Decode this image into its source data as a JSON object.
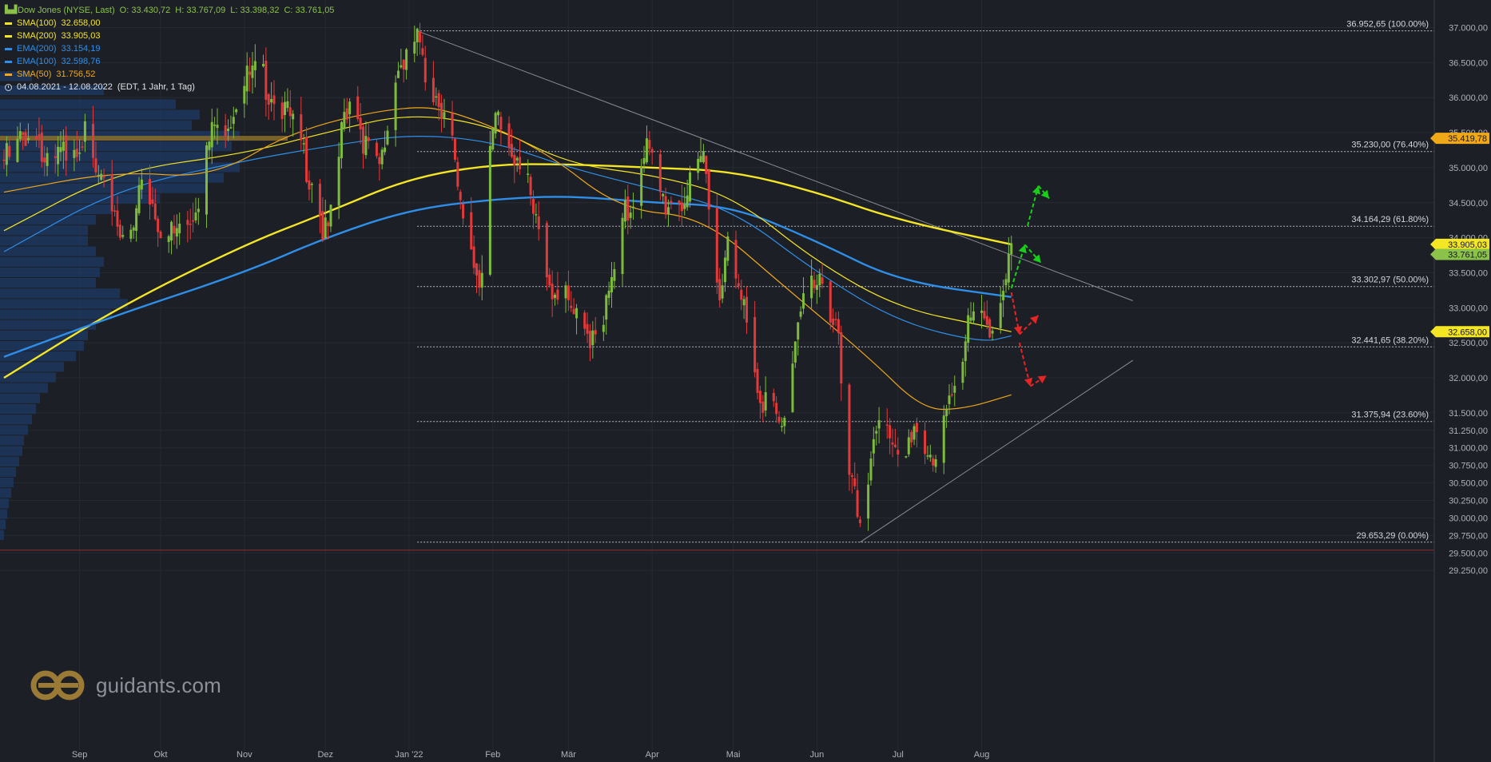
{
  "header": {
    "title": "Dow Jones (NYSE, Last)",
    "ohlc": [
      "O: 33.430,72",
      "H: 33.767,09",
      "L: 33.398,32",
      "C: 33.761,05"
    ],
    "indicators": [
      {
        "label": "SMA(100)",
        "value": "32.658,00",
        "color": "#f5e625"
      },
      {
        "label": "SMA(200)",
        "value": "33.905,03",
        "color": "#f5e625"
      },
      {
        "label": "EMA(200)",
        "value": "33.154,19",
        "color": "#2f8fe8"
      },
      {
        "label": "EMA(100)",
        "value": "32.598,76",
        "color": "#2f8fe8"
      },
      {
        "label": "SMA(50)",
        "value": "31.756,52",
        "color": "#f0a818"
      }
    ],
    "range": "04.08.2021 - 12.08.2022",
    "range_detail": "(EDT, 1 Jahr, 1 Tag)"
  },
  "branding": {
    "logo_text": "guidants.com"
  },
  "chart_data": {
    "type": "candlestick",
    "ylim": [
      29250,
      37250
    ],
    "y_ticks": [
      {
        "v": 29250,
        "t": "29.250,00"
      },
      {
        "v": 29500,
        "t": "29.500,00"
      },
      {
        "v": 29750,
        "t": "29.750,00"
      },
      {
        "v": 30000,
        "t": "30.000,00"
      },
      {
        "v": 30250,
        "t": "30.250,00"
      },
      {
        "v": 30500,
        "t": "30.500,00"
      },
      {
        "v": 30750,
        "t": "30.750,00"
      },
      {
        "v": 31000,
        "t": "31.000,00"
      },
      {
        "v": 31250,
        "t": "31.250,00"
      },
      {
        "v": 31500,
        "t": "31.500,00"
      },
      {
        "v": 32000,
        "t": "32.000,00"
      },
      {
        "v": 32500,
        "t": "32.500,00"
      },
      {
        "v": 33000,
        "t": "33.000,00"
      },
      {
        "v": 33500,
        "t": "33.500,00"
      },
      {
        "v": 34000,
        "t": "34.000,00"
      },
      {
        "v": 34500,
        "t": "34.500,00"
      },
      {
        "v": 35000,
        "t": "35.000,00"
      },
      {
        "v": 35500,
        "t": "35.500,00"
      },
      {
        "v": 36000,
        "t": "36.000,00"
      },
      {
        "v": 36500,
        "t": "36.500,00"
      },
      {
        "v": 37000,
        "t": "37.000,00"
      }
    ],
    "x_ticks": [
      {
        "date": "2021-09-01",
        "t": "Sep"
      },
      {
        "date": "2021-10-01",
        "t": "Okt"
      },
      {
        "date": "2021-11-01",
        "t": "Nov"
      },
      {
        "date": "2021-12-01",
        "t": "Dez"
      },
      {
        "date": "2022-01-01",
        "t": "Jan '22"
      },
      {
        "date": "2022-02-01",
        "t": "Feb"
      },
      {
        "date": "2022-03-01",
        "t": "Mär"
      },
      {
        "date": "2022-04-01",
        "t": "Apr"
      },
      {
        "date": "2022-05-01",
        "t": "Mai"
      },
      {
        "date": "2022-06-01",
        "t": "Jun"
      },
      {
        "date": "2022-07-01",
        "t": "Jul"
      },
      {
        "date": "2022-08-01",
        "t": "Aug"
      }
    ],
    "price_badges": [
      {
        "v": 35419.78,
        "t": "35.419,78",
        "color": "#f0a818"
      },
      {
        "v": 33905.03,
        "t": "33.905,03",
        "color": "#f5e625"
      },
      {
        "v": 33761.05,
        "t": "33.761,05",
        "color": "#8bc34a"
      },
      {
        "v": 32658.0,
        "t": "32.658,00",
        "color": "#f5e625"
      }
    ],
    "fib_levels": [
      {
        "v": 36952.65,
        "t": "36.952,65 (100.00%)"
      },
      {
        "v": 35230.0,
        "t": "35.230,00 (76.40%)"
      },
      {
        "v": 34164.29,
        "t": "34.164,29 (61.80%)"
      },
      {
        "v": 33302.97,
        "t": "33.302,97 (50.00%)"
      },
      {
        "v": 32441.65,
        "t": "32.441,65 (38.20%)"
      },
      {
        "v": 31375.94,
        "t": "31.375,94 (23.60%)"
      },
      {
        "v": 29653.29,
        "t": "29.653,29 (0.00%)"
      }
    ],
    "fib_start_date": "2022-01-04",
    "support_level": 29540,
    "trendlines": [
      {
        "from": {
          "date": "2022-01-04",
          "v": 36952
        },
        "to": {
          "date": "2022-09-26",
          "v": 33100
        },
        "color": "#8a8d94"
      },
      {
        "from": {
          "date": "2022-06-17",
          "v": 29653
        },
        "to": {
          "date": "2022-09-26",
          "v": 32250
        },
        "color": "#8a8d94"
      }
    ],
    "scenario_arrows": [
      {
        "from": {
          "date": "2022-08-12",
          "v": 33280
        },
        "to": {
          "date": "2022-08-17",
          "v": 33900
        },
        "color": "#18d018"
      },
      {
        "from": {
          "date": "2022-08-17",
          "v": 33900
        },
        "to": {
          "date": "2022-08-23",
          "v": 33640
        },
        "color": "#18d018"
      },
      {
        "from": {
          "date": "2022-08-18",
          "v": 34170
        },
        "to": {
          "date": "2022-08-22",
          "v": 34740
        },
        "color": "#18d018"
      },
      {
        "from": {
          "date": "2022-08-22",
          "v": 34740
        },
        "to": {
          "date": "2022-08-26",
          "v": 34560
        },
        "color": "#18d018"
      },
      {
        "from": {
          "date": "2022-08-12",
          "v": 33220
        },
        "to": {
          "date": "2022-08-15",
          "v": 32620
        },
        "color": "#e82525"
      },
      {
        "from": {
          "date": "2022-08-15",
          "v": 32620
        },
        "to": {
          "date": "2022-08-22",
          "v": 32890
        },
        "color": "#e82525"
      },
      {
        "from": {
          "date": "2022-08-15",
          "v": 32500
        },
        "to": {
          "date": "2022-08-19",
          "v": 31880
        },
        "color": "#e82525"
      },
      {
        "from": {
          "date": "2022-08-19",
          "v": 31880
        },
        "to": {
          "date": "2022-08-25",
          "v": 32030
        },
        "color": "#e82525"
      }
    ],
    "anchors": [
      {
        "date": "2021-08-04",
        "v": 35100
      },
      {
        "date": "2021-08-16",
        "v": 35620
      },
      {
        "date": "2021-08-19",
        "v": 34960
      },
      {
        "date": "2021-09-02",
        "v": 35440
      },
      {
        "date": "2021-09-10",
        "v": 34620
      },
      {
        "date": "2021-09-20",
        "v": 33980
      },
      {
        "date": "2021-09-24",
        "v": 34800
      },
      {
        "date": "2021-10-04",
        "v": 34000
      },
      {
        "date": "2021-10-12",
        "v": 34360
      },
      {
        "date": "2021-10-22",
        "v": 35600
      },
      {
        "date": "2021-11-05",
        "v": 36330
      },
      {
        "date": "2021-11-12",
        "v": 36100
      },
      {
        "date": "2021-11-19",
        "v": 35620
      },
      {
        "date": "2021-11-26",
        "v": 34900
      },
      {
        "date": "2021-12-01",
        "v": 34030
      },
      {
        "date": "2021-12-10",
        "v": 35960
      },
      {
        "date": "2021-12-20",
        "v": 34950
      },
      {
        "date": "2021-12-29",
        "v": 36480
      },
      {
        "date": "2022-01-04",
        "v": 36800
      },
      {
        "date": "2022-01-07",
        "v": 36230
      },
      {
        "date": "2022-01-14",
        "v": 35920
      },
      {
        "date": "2022-01-21",
        "v": 34270
      },
      {
        "date": "2022-01-27",
        "v": 33500
      },
      {
        "date": "2022-02-02",
        "v": 35600
      },
      {
        "date": "2022-02-10",
        "v": 35240
      },
      {
        "date": "2022-02-18",
        "v": 34080
      },
      {
        "date": "2022-02-24",
        "v": 33220
      },
      {
        "date": "2022-03-08",
        "v": 32630
      },
      {
        "date": "2022-03-14",
        "v": 32940
      },
      {
        "date": "2022-03-23",
        "v": 34360
      },
      {
        "date": "2022-03-29",
        "v": 35290
      },
      {
        "date": "2022-04-06",
        "v": 34500
      },
      {
        "date": "2022-04-13",
        "v": 34560
      },
      {
        "date": "2022-04-20",
        "v": 35150
      },
      {
        "date": "2022-04-26",
        "v": 33240
      },
      {
        "date": "2022-04-28",
        "v": 33910
      },
      {
        "date": "2022-05-05",
        "v": 32990
      },
      {
        "date": "2022-05-12",
        "v": 31730
      },
      {
        "date": "2022-05-19",
        "v": 31250
      },
      {
        "date": "2022-05-27",
        "v": 33210
      },
      {
        "date": "2022-06-02",
        "v": 33250
      },
      {
        "date": "2022-06-08",
        "v": 32900
      },
      {
        "date": "2022-06-13",
        "v": 30520
      },
      {
        "date": "2022-06-17",
        "v": 29890
      },
      {
        "date": "2022-06-24",
        "v": 31500
      },
      {
        "date": "2022-06-30",
        "v": 30780
      },
      {
        "date": "2022-07-08",
        "v": 31340
      },
      {
        "date": "2022-07-14",
        "v": 30630
      },
      {
        "date": "2022-07-21",
        "v": 31900
      },
      {
        "date": "2022-07-29",
        "v": 32850
      },
      {
        "date": "2022-08-05",
        "v": 32800
      },
      {
        "date": "2022-08-10",
        "v": 33310
      },
      {
        "date": "2022-08-12",
        "v": 33761
      }
    ],
    "series": [
      {
        "name": "SMA(200)",
        "color": "#f5e625",
        "width": 2.4,
        "points": [
          {
            "date": "2021-08-04",
            "v": 32000
          },
          {
            "date": "2021-09-15",
            "v": 33000
          },
          {
            "date": "2021-11-01",
            "v": 33900
          },
          {
            "date": "2021-12-01",
            "v": 34350
          },
          {
            "date": "2022-01-01",
            "v": 34850
          },
          {
            "date": "2022-02-01",
            "v": 35050
          },
          {
            "date": "2022-03-01",
            "v": 35050
          },
          {
            "date": "2022-04-01",
            "v": 35000
          },
          {
            "date": "2022-05-01",
            "v": 34950
          },
          {
            "date": "2022-06-01",
            "v": 34650
          },
          {
            "date": "2022-07-01",
            "v": 34250
          },
          {
            "date": "2022-08-12",
            "v": 33905
          }
        ]
      },
      {
        "name": "EMA(200)",
        "color": "#2f8fe8",
        "width": 2.4,
        "points": [
          {
            "date": "2021-08-04",
            "v": 32300
          },
          {
            "date": "2021-09-15",
            "v": 32900
          },
          {
            "date": "2021-11-01",
            "v": 33500
          },
          {
            "date": "2021-12-01",
            "v": 34000
          },
          {
            "date": "2022-01-01",
            "v": 34400
          },
          {
            "date": "2022-02-01",
            "v": 34550
          },
          {
            "date": "2022-03-01",
            "v": 34600
          },
          {
            "date": "2022-04-01",
            "v": 34500
          },
          {
            "date": "2022-05-01",
            "v": 34450
          },
          {
            "date": "2022-06-01",
            "v": 33950
          },
          {
            "date": "2022-07-01",
            "v": 33380
          },
          {
            "date": "2022-08-12",
            "v": 33154
          }
        ]
      },
      {
        "name": "SMA(100)",
        "color": "#f5e625",
        "width": 1.2,
        "points": [
          {
            "date": "2021-08-04",
            "v": 34100
          },
          {
            "date": "2021-09-15",
            "v": 34950
          },
          {
            "date": "2021-11-01",
            "v": 35200
          },
          {
            "date": "2021-12-01",
            "v": 35500
          },
          {
            "date": "2022-01-01",
            "v": 35780
          },
          {
            "date": "2022-02-01",
            "v": 35600
          },
          {
            "date": "2022-03-01",
            "v": 35050
          },
          {
            "date": "2022-04-01",
            "v": 34900
          },
          {
            "date": "2022-05-01",
            "v": 34600
          },
          {
            "date": "2022-06-01",
            "v": 33650
          },
          {
            "date": "2022-07-01",
            "v": 33000
          },
          {
            "date": "2022-08-01",
            "v": 32750
          },
          {
            "date": "2022-08-12",
            "v": 32658
          }
        ]
      },
      {
        "name": "EMA(100)",
        "color": "#2f8fe8",
        "width": 1.2,
        "points": [
          {
            "date": "2021-08-04",
            "v": 33800
          },
          {
            "date": "2021-09-15",
            "v": 34700
          },
          {
            "date": "2021-11-01",
            "v": 35100
          },
          {
            "date": "2021-12-01",
            "v": 35300
          },
          {
            "date": "2022-01-01",
            "v": 35480
          },
          {
            "date": "2022-02-01",
            "v": 35380
          },
          {
            "date": "2022-03-01",
            "v": 35000
          },
          {
            "date": "2022-04-01",
            "v": 34700
          },
          {
            "date": "2022-05-01",
            "v": 34400
          },
          {
            "date": "2022-06-01",
            "v": 33500
          },
          {
            "date": "2022-07-01",
            "v": 32800
          },
          {
            "date": "2022-08-01",
            "v": 32500
          },
          {
            "date": "2022-08-12",
            "v": 32599
          }
        ]
      },
      {
        "name": "SMA(50)",
        "color": "#f0a818",
        "width": 1.2,
        "points": [
          {
            "date": "2021-08-04",
            "v": 34650
          },
          {
            "date": "2021-09-15",
            "v": 34950
          },
          {
            "date": "2021-10-20",
            "v": 34850
          },
          {
            "date": "2021-11-20",
            "v": 35550
          },
          {
            "date": "2022-01-01",
            "v": 35900
          },
          {
            "date": "2022-01-20",
            "v": 35780
          },
          {
            "date": "2022-02-20",
            "v": 35250
          },
          {
            "date": "2022-03-20",
            "v": 34400
          },
          {
            "date": "2022-04-20",
            "v": 34300
          },
          {
            "date": "2022-05-20",
            "v": 33300
          },
          {
            "date": "2022-06-20",
            "v": 32300
          },
          {
            "date": "2022-07-10",
            "v": 31550
          },
          {
            "date": "2022-07-25",
            "v": 31550
          },
          {
            "date": "2022-08-12",
            "v": 31757
          }
        ]
      }
    ],
    "volume_profile": [
      {
        "v": 36300,
        "w": 40
      },
      {
        "v": 36100,
        "w": 130
      },
      {
        "v": 35900,
        "w": 220
      },
      {
        "v": 35750,
        "w": 250
      },
      {
        "v": 35600,
        "w": 240
      },
      {
        "v": 35450,
        "w": 300
      },
      {
        "v": 35300,
        "w": 290
      },
      {
        "v": 35150,
        "w": 260
      },
      {
        "v": 35000,
        "w": 300
      },
      {
        "v": 34850,
        "w": 280
      },
      {
        "v": 34700,
        "w": 260
      },
      {
        "v": 34550,
        "w": 200
      },
      {
        "v": 34400,
        "w": 140
      },
      {
        "v": 34250,
        "w": 120
      },
      {
        "v": 34100,
        "w": 110
      },
      {
        "v": 33950,
        "w": 110
      },
      {
        "v": 33800,
        "w": 120
      },
      {
        "v": 33650,
        "w": 130
      },
      {
        "v": 33500,
        "w": 125
      },
      {
        "v": 33350,
        "w": 120
      },
      {
        "v": 33200,
        "w": 150
      },
      {
        "v": 33050,
        "w": 160
      },
      {
        "v": 32900,
        "w": 140
      },
      {
        "v": 32750,
        "w": 120
      },
      {
        "v": 32600,
        "w": 110
      },
      {
        "v": 32450,
        "w": 105
      },
      {
        "v": 32300,
        "w": 95
      },
      {
        "v": 32150,
        "w": 80
      },
      {
        "v": 32000,
        "w": 70
      },
      {
        "v": 31850,
        "w": 60
      },
      {
        "v": 31700,
        "w": 50
      },
      {
        "v": 31550,
        "w": 45
      },
      {
        "v": 31400,
        "w": 40
      },
      {
        "v": 31250,
        "w": 35
      },
      {
        "v": 31100,
        "w": 30
      },
      {
        "v": 30950,
        "w": 28
      },
      {
        "v": 30800,
        "w": 24
      },
      {
        "v": 30650,
        "w": 20
      },
      {
        "v": 30500,
        "w": 17
      },
      {
        "v": 30350,
        "w": 14
      },
      {
        "v": 30200,
        "w": 11
      },
      {
        "v": 30050,
        "w": 9
      },
      {
        "v": 29900,
        "w": 7
      },
      {
        "v": 29750,
        "w": 5
      }
    ],
    "poc": {
      "v": 35420,
      "w": 300
    }
  }
}
